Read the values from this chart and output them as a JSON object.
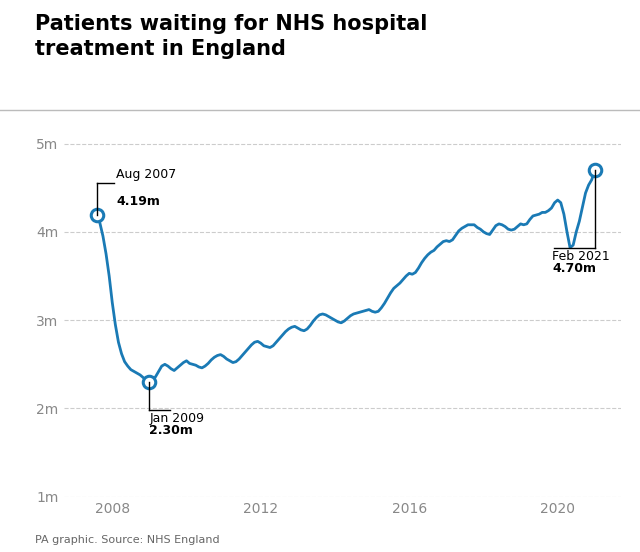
{
  "title": "Patients waiting for NHS hospital\ntreatment in England",
  "source": "PA graphic. Source: NHS England",
  "line_color": "#1a7ab5",
  "background_color": "#ffffff",
  "title_fontsize": 15,
  "ylim": [
    1000000,
    5250000
  ],
  "yticks": [
    1000000,
    2000000,
    3000000,
    4000000,
    5000000
  ],
  "ytick_labels": [
    "1m",
    "2m",
    "3m",
    "4m",
    "5m"
  ],
  "xticks": [
    2008,
    2012,
    2016,
    2020
  ],
  "data": [
    [
      2007.583,
      4190000
    ],
    [
      2007.667,
      4100000
    ],
    [
      2007.75,
      3950000
    ],
    [
      2007.833,
      3750000
    ],
    [
      2007.917,
      3500000
    ],
    [
      2008.0,
      3200000
    ],
    [
      2008.083,
      2950000
    ],
    [
      2008.167,
      2750000
    ],
    [
      2008.25,
      2620000
    ],
    [
      2008.333,
      2530000
    ],
    [
      2008.417,
      2480000
    ],
    [
      2008.5,
      2440000
    ],
    [
      2008.583,
      2420000
    ],
    [
      2008.667,
      2400000
    ],
    [
      2008.75,
      2380000
    ],
    [
      2008.833,
      2350000
    ],
    [
      2008.917,
      2320000
    ],
    [
      2009.0,
      2300000
    ],
    [
      2009.083,
      2320000
    ],
    [
      2009.167,
      2360000
    ],
    [
      2009.25,
      2420000
    ],
    [
      2009.333,
      2480000
    ],
    [
      2009.417,
      2500000
    ],
    [
      2009.5,
      2480000
    ],
    [
      2009.583,
      2450000
    ],
    [
      2009.667,
      2430000
    ],
    [
      2009.75,
      2460000
    ],
    [
      2009.833,
      2490000
    ],
    [
      2009.917,
      2520000
    ],
    [
      2010.0,
      2540000
    ],
    [
      2010.083,
      2510000
    ],
    [
      2010.167,
      2500000
    ],
    [
      2010.25,
      2490000
    ],
    [
      2010.333,
      2470000
    ],
    [
      2010.417,
      2460000
    ],
    [
      2010.5,
      2480000
    ],
    [
      2010.583,
      2510000
    ],
    [
      2010.667,
      2550000
    ],
    [
      2010.75,
      2580000
    ],
    [
      2010.833,
      2600000
    ],
    [
      2010.917,
      2610000
    ],
    [
      2011.0,
      2590000
    ],
    [
      2011.083,
      2560000
    ],
    [
      2011.167,
      2540000
    ],
    [
      2011.25,
      2520000
    ],
    [
      2011.333,
      2530000
    ],
    [
      2011.417,
      2560000
    ],
    [
      2011.5,
      2600000
    ],
    [
      2011.583,
      2640000
    ],
    [
      2011.667,
      2680000
    ],
    [
      2011.75,
      2720000
    ],
    [
      2011.833,
      2750000
    ],
    [
      2011.917,
      2760000
    ],
    [
      2012.0,
      2740000
    ],
    [
      2012.083,
      2710000
    ],
    [
      2012.167,
      2700000
    ],
    [
      2012.25,
      2690000
    ],
    [
      2012.333,
      2710000
    ],
    [
      2012.417,
      2750000
    ],
    [
      2012.5,
      2790000
    ],
    [
      2012.583,
      2830000
    ],
    [
      2012.667,
      2870000
    ],
    [
      2012.75,
      2900000
    ],
    [
      2012.833,
      2920000
    ],
    [
      2012.917,
      2930000
    ],
    [
      2013.0,
      2910000
    ],
    [
      2013.083,
      2890000
    ],
    [
      2013.167,
      2880000
    ],
    [
      2013.25,
      2900000
    ],
    [
      2013.333,
      2940000
    ],
    [
      2013.417,
      2990000
    ],
    [
      2013.5,
      3030000
    ],
    [
      2013.583,
      3060000
    ],
    [
      2013.667,
      3070000
    ],
    [
      2013.75,
      3060000
    ],
    [
      2013.833,
      3040000
    ],
    [
      2013.917,
      3020000
    ],
    [
      2014.0,
      3000000
    ],
    [
      2014.083,
      2980000
    ],
    [
      2014.167,
      2970000
    ],
    [
      2014.25,
      2990000
    ],
    [
      2014.333,
      3020000
    ],
    [
      2014.417,
      3050000
    ],
    [
      2014.5,
      3070000
    ],
    [
      2014.583,
      3080000
    ],
    [
      2014.667,
      3090000
    ],
    [
      2014.75,
      3100000
    ],
    [
      2014.833,
      3110000
    ],
    [
      2014.917,
      3120000
    ],
    [
      2015.0,
      3100000
    ],
    [
      2015.083,
      3090000
    ],
    [
      2015.167,
      3100000
    ],
    [
      2015.25,
      3140000
    ],
    [
      2015.333,
      3190000
    ],
    [
      2015.417,
      3250000
    ],
    [
      2015.5,
      3310000
    ],
    [
      2015.583,
      3360000
    ],
    [
      2015.667,
      3390000
    ],
    [
      2015.75,
      3420000
    ],
    [
      2015.833,
      3460000
    ],
    [
      2015.917,
      3500000
    ],
    [
      2016.0,
      3530000
    ],
    [
      2016.083,
      3520000
    ],
    [
      2016.167,
      3540000
    ],
    [
      2016.25,
      3590000
    ],
    [
      2016.333,
      3650000
    ],
    [
      2016.417,
      3700000
    ],
    [
      2016.5,
      3740000
    ],
    [
      2016.583,
      3770000
    ],
    [
      2016.667,
      3790000
    ],
    [
      2016.75,
      3830000
    ],
    [
      2016.833,
      3860000
    ],
    [
      2016.917,
      3890000
    ],
    [
      2017.0,
      3900000
    ],
    [
      2017.083,
      3890000
    ],
    [
      2017.167,
      3910000
    ],
    [
      2017.25,
      3960000
    ],
    [
      2017.333,
      4010000
    ],
    [
      2017.417,
      4040000
    ],
    [
      2017.5,
      4060000
    ],
    [
      2017.583,
      4080000
    ],
    [
      2017.667,
      4080000
    ],
    [
      2017.75,
      4080000
    ],
    [
      2017.833,
      4050000
    ],
    [
      2017.917,
      4030000
    ],
    [
      2018.0,
      4000000
    ],
    [
      2018.083,
      3980000
    ],
    [
      2018.167,
      3970000
    ],
    [
      2018.25,
      4020000
    ],
    [
      2018.333,
      4070000
    ],
    [
      2018.417,
      4090000
    ],
    [
      2018.5,
      4080000
    ],
    [
      2018.583,
      4060000
    ],
    [
      2018.667,
      4030000
    ],
    [
      2018.75,
      4020000
    ],
    [
      2018.833,
      4030000
    ],
    [
      2018.917,
      4060000
    ],
    [
      2019.0,
      4090000
    ],
    [
      2019.083,
      4080000
    ],
    [
      2019.167,
      4090000
    ],
    [
      2019.25,
      4140000
    ],
    [
      2019.333,
      4180000
    ],
    [
      2019.417,
      4190000
    ],
    [
      2019.5,
      4200000
    ],
    [
      2019.583,
      4220000
    ],
    [
      2019.667,
      4220000
    ],
    [
      2019.75,
      4240000
    ],
    [
      2019.833,
      4270000
    ],
    [
      2019.917,
      4330000
    ],
    [
      2020.0,
      4360000
    ],
    [
      2020.083,
      4330000
    ],
    [
      2020.167,
      4200000
    ],
    [
      2020.25,
      4000000
    ],
    [
      2020.333,
      3820000
    ],
    [
      2020.417,
      3850000
    ],
    [
      2020.5,
      4000000
    ],
    [
      2020.583,
      4120000
    ],
    [
      2020.667,
      4280000
    ],
    [
      2020.75,
      4440000
    ],
    [
      2020.833,
      4530000
    ],
    [
      2020.917,
      4590000
    ],
    [
      2021.0,
      4700000
    ]
  ]
}
